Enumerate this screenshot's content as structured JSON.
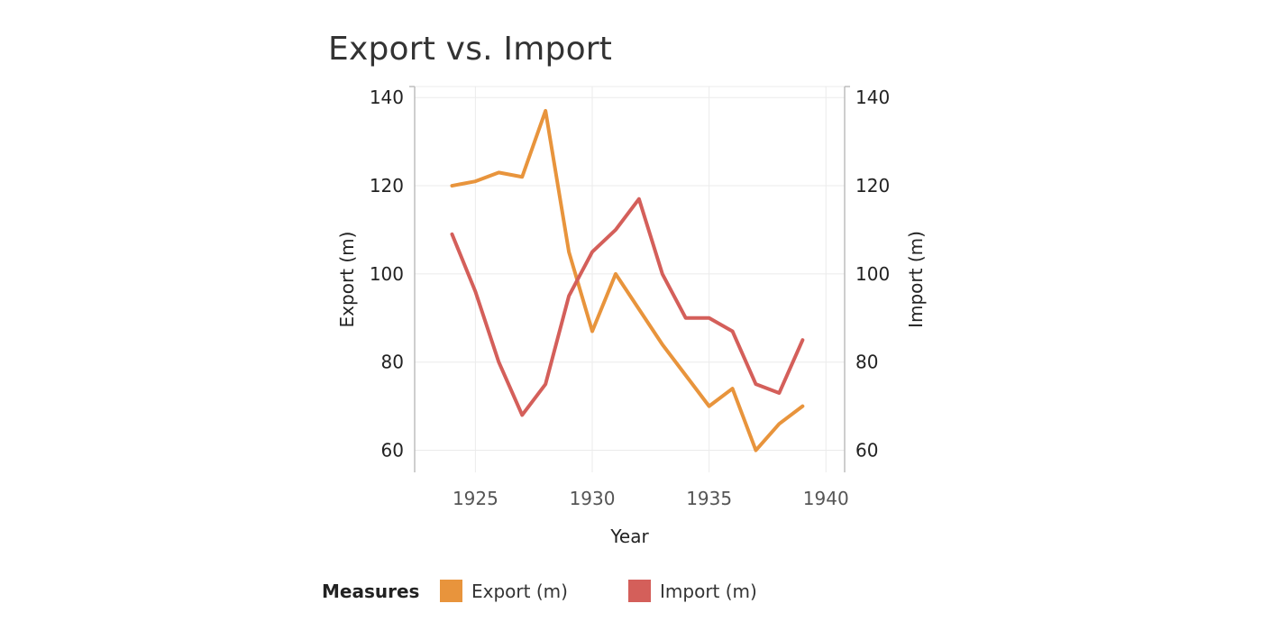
{
  "chart_data": {
    "type": "line",
    "title": "Export vs. Import",
    "xlabel": "Year",
    "ylabel_left": "Export (m)",
    "ylabel_right": "Import (m)",
    "x": [
      1924,
      1925,
      1926,
      1927,
      1928,
      1929,
      1930,
      1931,
      1932,
      1933,
      1934,
      1935,
      1936,
      1937,
      1938,
      1939
    ],
    "xticks": [
      1925,
      1930,
      1935,
      1940
    ],
    "xlim": [
      1922.4,
      1940.8
    ],
    "yticks": [
      60,
      80,
      100,
      120,
      140
    ],
    "ylim": [
      55,
      142.5
    ],
    "series": [
      {
        "name": "Export (m)",
        "axis": "left",
        "color": "#E8943C",
        "values": [
          120,
          121,
          123,
          122,
          137,
          105,
          87,
          100,
          92,
          84,
          77,
          70,
          74,
          60,
          66,
          70
        ]
      },
      {
        "name": "Import (m)",
        "axis": "right",
        "color": "#D45F5A",
        "values": [
          109,
          96,
          80,
          68,
          75,
          95,
          105,
          110,
          117,
          100,
          90,
          90,
          87,
          75,
          73,
          85
        ]
      }
    ],
    "grid": true,
    "legend": {
      "title": "Measures",
      "placement": "bottom",
      "items": [
        {
          "label": "Export (m)",
          "color": "#E8943C"
        },
        {
          "label": "Import (m)",
          "color": "#D45F5A"
        }
      ]
    }
  }
}
